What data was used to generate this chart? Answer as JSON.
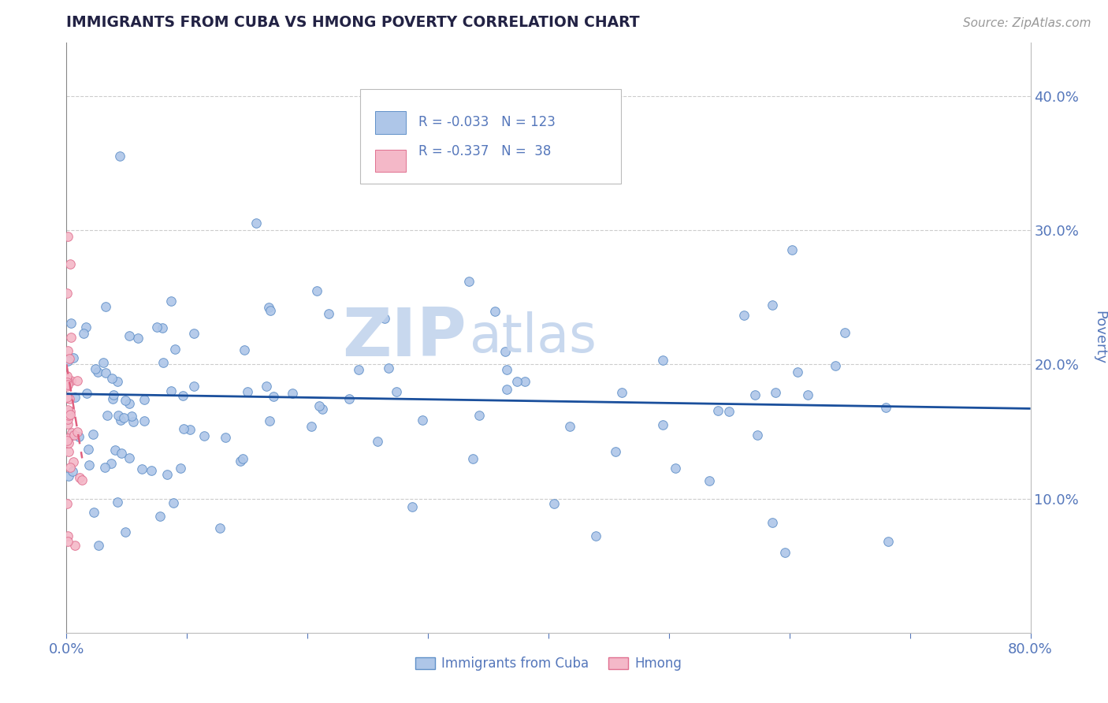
{
  "title": "IMMIGRANTS FROM CUBA VS HMONG POVERTY CORRELATION CHART",
  "source_text": "Source: ZipAtlas.com",
  "ylabel": "Poverty",
  "xlim": [
    0.0,
    0.8
  ],
  "ylim": [
    0.0,
    0.44
  ],
  "yticks": [
    0.1,
    0.2,
    0.3,
    0.4
  ],
  "yticklabels": [
    "10.0%",
    "20.0%",
    "30.0%",
    "40.0%"
  ],
  "cuba_color": "#aec6e8",
  "hmong_color": "#f4b8c8",
  "cuba_edge": "#6090c8",
  "hmong_edge": "#e07090",
  "trend_cuba_color": "#1a4f9c",
  "trend_hmong_color": "#e06080",
  "grid_color": "#cccccc",
  "title_color": "#222244",
  "tick_color": "#5577bb",
  "watermark_zip": "ZIP",
  "watermark_atlas": "atlas",
  "watermark_color": "#c8d8ee",
  "legend_r_cuba": "-0.033",
  "legend_n_cuba": "123",
  "legend_r_hmong": "-0.337",
  "legend_n_hmong": "38",
  "background_color": "#ffffff"
}
